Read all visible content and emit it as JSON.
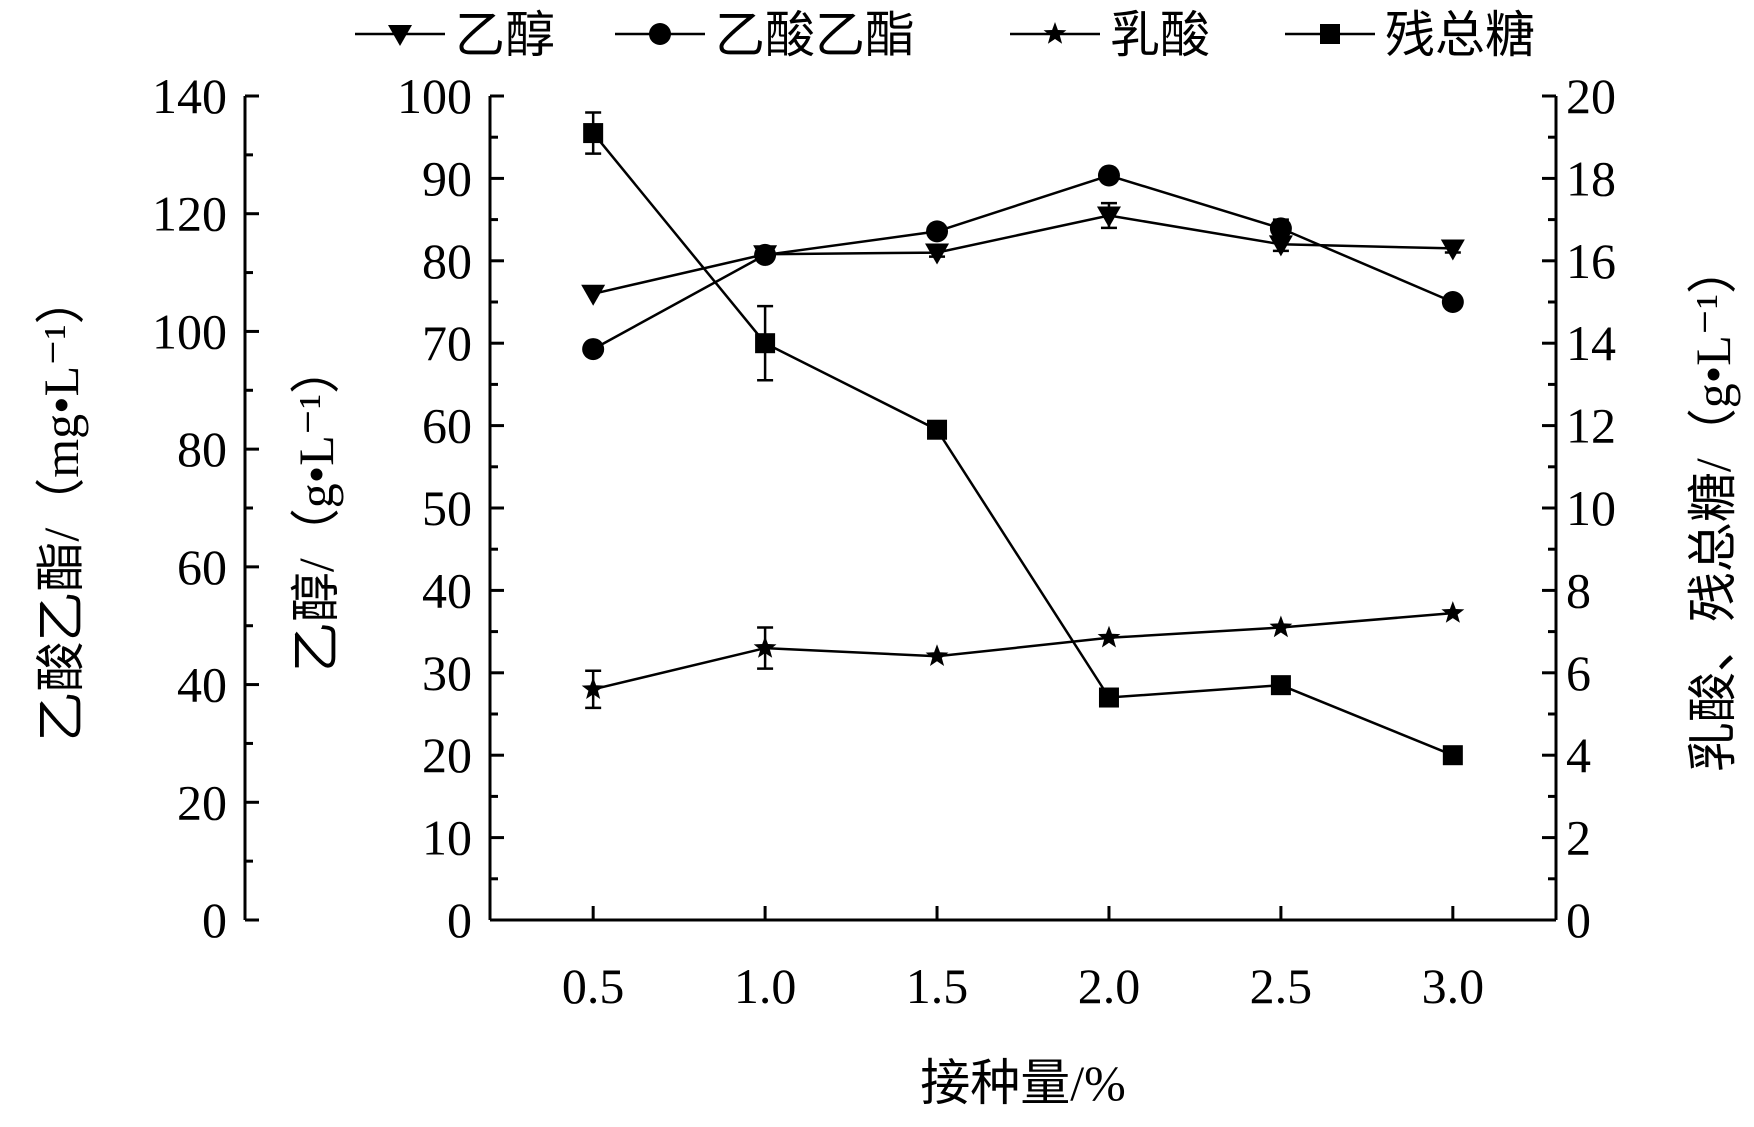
{
  "chart_data": {
    "type": "line",
    "title": "",
    "xlabel": "接种量/%",
    "categories": [
      "0.5",
      "1.0",
      "1.5",
      "2.0",
      "2.5",
      "3.0"
    ],
    "x": [
      0.5,
      1.0,
      1.5,
      2.0,
      2.5,
      3.0
    ],
    "xlim": [
      0.2,
      3.3
    ],
    "axes": {
      "left_outer": {
        "label": "乙酸乙酯/（mg•L⁻¹）",
        "ylim": [
          0,
          140
        ],
        "major_step": 20,
        "tick_labels": [
          "0",
          "20",
          "40",
          "60",
          "80",
          "100",
          "120",
          "140"
        ]
      },
      "left_inner": {
        "label": "乙醇/（g•L⁻¹）",
        "ylim": [
          0,
          100
        ],
        "major_step": 10,
        "tick_labels": [
          "0",
          "10",
          "20",
          "30",
          "40",
          "50",
          "60",
          "70",
          "80",
          "90",
          "100"
        ]
      },
      "right": {
        "label": "乳酸、残总糖/（g•L⁻¹）",
        "ylim": [
          0,
          20
        ],
        "major_step": 2,
        "tick_labels": [
          "0",
          "2",
          "4",
          "6",
          "8",
          "10",
          "12",
          "14",
          "16",
          "18",
          "20"
        ]
      }
    },
    "legend_position": "top",
    "series": [
      {
        "name": "乙醇",
        "marker": "triangle-down",
        "axis": "left_inner",
        "values": [
          76,
          80.8,
          81,
          85.5,
          82,
          81.5
        ],
        "errors": [
          0,
          0.8,
          0.5,
          1.5,
          0.8,
          0.5
        ]
      },
      {
        "name": "乙酸乙酯",
        "marker": "circle",
        "axis": "left_outer",
        "values": [
          97,
          113,
          117,
          126.5,
          117.5,
          105
        ],
        "errors": [
          0,
          1.0,
          0,
          0,
          1.5,
          0
        ]
      },
      {
        "name": "乳酸",
        "marker": "star",
        "axis": "right",
        "values": [
          5.6,
          6.6,
          6.4,
          6.85,
          7.1,
          7.45
        ],
        "errors": [
          0.45,
          0.5,
          0,
          0,
          0,
          0
        ]
      },
      {
        "name": "残总糖",
        "marker": "square",
        "axis": "right",
        "values": [
          19.1,
          14.0,
          11.9,
          5.4,
          5.7,
          4.0
        ],
        "errors": [
          0.5,
          0.9,
          0,
          0,
          0,
          0
        ]
      }
    ]
  }
}
